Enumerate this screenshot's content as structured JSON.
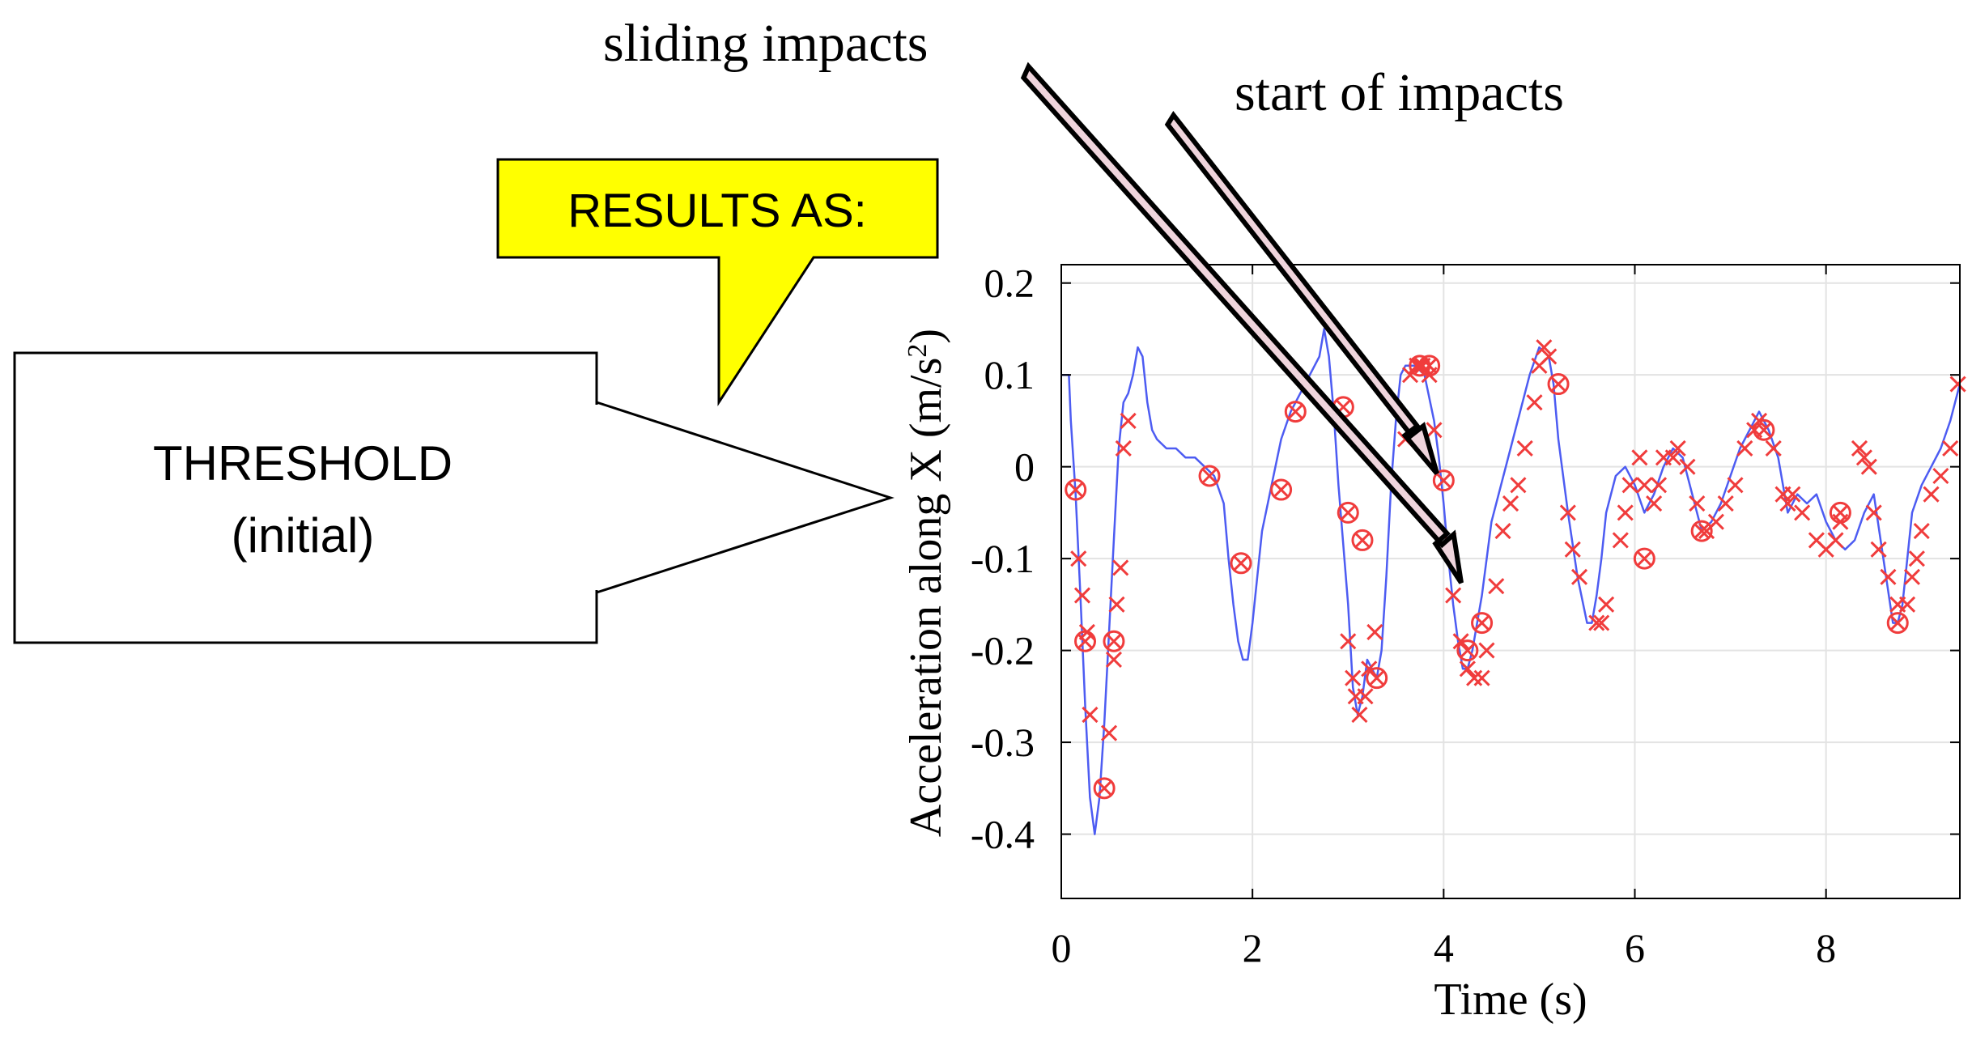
{
  "annotations": {
    "sliding_label": "sliding impacts",
    "start_label": "start of impacts",
    "callout_text": "RESULTS AS:",
    "threshold_title": "THRESHOLD",
    "threshold_sub": "(initial)"
  },
  "colors": {
    "signal_line": "#4d5cf2",
    "marker": "#f03c3c",
    "callout_fill": "#ffff00",
    "arrow_fill": "#efd4dc",
    "grid": "#e3e3e3",
    "axis": "#000000"
  },
  "chart_data": {
    "type": "line",
    "title": "",
    "xlabel": "Time (s)",
    "ylabel_main": "Acceleration along X (m/s",
    "ylabel_sup": "2",
    "ylabel_end": ")",
    "xlim": [
      0,
      9.4
    ],
    "ylim": [
      -0.47,
      0.22
    ],
    "x_ticks": [
      0,
      2,
      4,
      6,
      8
    ],
    "x_tick_labels": [
      "0",
      "2",
      "4",
      "6",
      "8"
    ],
    "y_ticks": [
      0.2,
      0.1,
      0,
      -0.1,
      -0.2,
      -0.3,
      -0.4
    ],
    "y_tick_labels": [
      "0.2",
      "0.1",
      "0",
      "-0.1",
      "-0.2",
      "-0.3",
      "-0.4"
    ],
    "grid": true,
    "series": [
      {
        "name": "acceleration",
        "style": "line",
        "x": [
          0,
          0.05,
          0.08,
          0.1,
          0.15,
          0.2,
          0.25,
          0.3,
          0.35,
          0.4,
          0.45,
          0.5,
          0.55,
          0.6,
          0.65,
          0.7,
          0.75,
          0.8,
          0.85,
          0.9,
          0.95,
          1.0,
          1.1,
          1.2,
          1.3,
          1.4,
          1.5,
          1.6,
          1.7,
          1.75,
          1.8,
          1.85,
          1.9,
          1.95,
          2.0,
          2.05,
          2.1,
          2.2,
          2.3,
          2.4,
          2.5,
          2.6,
          2.7,
          2.75,
          2.8,
          2.85,
          2.9,
          3.0,
          3.05,
          3.1,
          3.15,
          3.2,
          3.25,
          3.3,
          3.35,
          3.4,
          3.45,
          3.5,
          3.55,
          3.6,
          3.7,
          3.8,
          3.9,
          3.95,
          4.0,
          4.05,
          4.1,
          4.15,
          4.2,
          4.25,
          4.3,
          4.35,
          4.4,
          4.45,
          4.5,
          4.6,
          4.7,
          4.8,
          4.9,
          5.0,
          5.1,
          5.15,
          5.2,
          5.3,
          5.4,
          5.5,
          5.55,
          5.6,
          5.65,
          5.7,
          5.8,
          5.9,
          6.0,
          6.1,
          6.2,
          6.3,
          6.4,
          6.5,
          6.6,
          6.7,
          6.8,
          6.9,
          7.0,
          7.1,
          7.2,
          7.3,
          7.4,
          7.5,
          7.6,
          7.7,
          7.8,
          7.9,
          8.0,
          8.1,
          8.2,
          8.3,
          8.4,
          8.5,
          8.6,
          8.7,
          8.75,
          8.8,
          8.85,
          8.9,
          9.0,
          9.1,
          9.2,
          9.3,
          9.4
        ],
        "y": [
          0.1,
          0.1,
          0.1,
          0.05,
          -0.03,
          -0.14,
          -0.26,
          -0.36,
          -0.4,
          -0.36,
          -0.28,
          -0.18,
          -0.08,
          0.02,
          0.07,
          0.08,
          0.1,
          0.13,
          0.12,
          0.07,
          0.04,
          0.03,
          0.02,
          0.02,
          0.01,
          0.01,
          0.0,
          -0.01,
          -0.04,
          -0.1,
          -0.15,
          -0.19,
          -0.21,
          -0.21,
          -0.17,
          -0.12,
          -0.07,
          -0.02,
          0.03,
          0.06,
          0.08,
          0.1,
          0.12,
          0.15,
          0.12,
          0.06,
          -0.02,
          -0.15,
          -0.24,
          -0.27,
          -0.25,
          -0.21,
          -0.22,
          -0.23,
          -0.2,
          -0.12,
          -0.02,
          0.05,
          0.1,
          0.11,
          0.11,
          0.1,
          0.05,
          0.01,
          -0.04,
          -0.1,
          -0.15,
          -0.19,
          -0.22,
          -0.22,
          -0.2,
          -0.17,
          -0.14,
          -0.1,
          -0.06,
          -0.02,
          0.02,
          0.06,
          0.1,
          0.13,
          0.12,
          0.09,
          0.03,
          -0.05,
          -0.12,
          -0.17,
          -0.17,
          -0.14,
          -0.1,
          -0.05,
          -0.01,
          0.0,
          -0.02,
          -0.05,
          -0.03,
          0.0,
          0.02,
          0.01,
          -0.03,
          -0.07,
          -0.06,
          -0.04,
          -0.01,
          0.02,
          0.04,
          0.06,
          0.04,
          0.01,
          -0.05,
          -0.03,
          -0.04,
          -0.03,
          -0.06,
          -0.08,
          -0.09,
          -0.08,
          -0.05,
          -0.03,
          -0.1,
          -0.17,
          -0.17,
          -0.15,
          -0.1,
          -0.05,
          -0.02,
          0.0,
          0.02,
          0.05,
          0.09
        ]
      },
      {
        "name": "impact cross markers",
        "style": "x-marker",
        "x": [
          0.18,
          0.22,
          0.27,
          0.3,
          0.5,
          0.55,
          0.58,
          0.62,
          0.65,
          0.7,
          3.0,
          3.05,
          3.08,
          3.12,
          3.18,
          3.22,
          3.28,
          3.6,
          3.65,
          3.72,
          3.78,
          3.85,
          3.9,
          4.05,
          4.1,
          4.18,
          4.25,
          4.32,
          4.4,
          4.45,
          4.55,
          4.62,
          4.7,
          4.78,
          4.85,
          4.95,
          5.0,
          5.05,
          5.1,
          5.3,
          5.35,
          5.42,
          5.6,
          5.65,
          5.7,
          5.85,
          5.9,
          5.95,
          6.05,
          6.1,
          6.2,
          6.25,
          6.3,
          6.4,
          6.45,
          6.55,
          6.65,
          6.75,
          6.85,
          6.95,
          7.05,
          7.15,
          7.25,
          7.3,
          7.45,
          7.55,
          7.6,
          7.65,
          7.75,
          7.9,
          8.0,
          8.1,
          8.15,
          8.35,
          8.4,
          8.45,
          8.5,
          8.55,
          8.65,
          8.75,
          8.85,
          8.9,
          8.95,
          9.0,
          9.1,
          9.2,
          9.3,
          9.38
        ],
        "y": [
          -0.1,
          -0.14,
          -0.18,
          -0.27,
          -0.29,
          -0.21,
          -0.15,
          -0.11,
          0.02,
          0.05,
          -0.19,
          -0.23,
          -0.25,
          -0.27,
          -0.25,
          -0.22,
          -0.18,
          0.03,
          0.1,
          0.11,
          0.11,
          0.1,
          0.04,
          -0.08,
          -0.14,
          -0.19,
          -0.22,
          -0.23,
          -0.23,
          -0.2,
          -0.13,
          -0.07,
          -0.04,
          -0.02,
          0.02,
          0.07,
          0.11,
          0.13,
          0.12,
          -0.05,
          -0.09,
          -0.12,
          -0.17,
          -0.17,
          -0.15,
          -0.08,
          -0.05,
          -0.02,
          0.01,
          -0.02,
          -0.04,
          -0.02,
          0.01,
          0.01,
          0.02,
          0.0,
          -0.04,
          -0.07,
          -0.06,
          -0.04,
          -0.02,
          0.02,
          0.04,
          0.05,
          0.02,
          -0.03,
          -0.04,
          -0.03,
          -0.05,
          -0.08,
          -0.09,
          -0.08,
          -0.06,
          0.02,
          0.01,
          0.0,
          -0.05,
          -0.09,
          -0.12,
          -0.15,
          -0.15,
          -0.12,
          -0.1,
          -0.07,
          -0.03,
          -0.01,
          0.02,
          0.09
        ]
      },
      {
        "name": "impact circle markers",
        "style": "circle-x-marker",
        "x": [
          0.15,
          0.25,
          0.45,
          0.55,
          1.55,
          1.88,
          2.3,
          2.45,
          2.95,
          3.0,
          3.15,
          3.3,
          3.75,
          3.85,
          4.0,
          4.25,
          4.4,
          5.2,
          6.1,
          6.7,
          7.35,
          8.15,
          8.75
        ],
        "y": [
          -0.025,
          -0.19,
          -0.35,
          -0.19,
          -0.01,
          -0.105,
          -0.025,
          0.06,
          0.065,
          -0.05,
          -0.08,
          -0.23,
          0.11,
          0.11,
          -0.015,
          -0.2,
          -0.17,
          0.09,
          -0.1,
          -0.07,
          0.04,
          -0.05,
          -0.17
        ]
      }
    ]
  }
}
